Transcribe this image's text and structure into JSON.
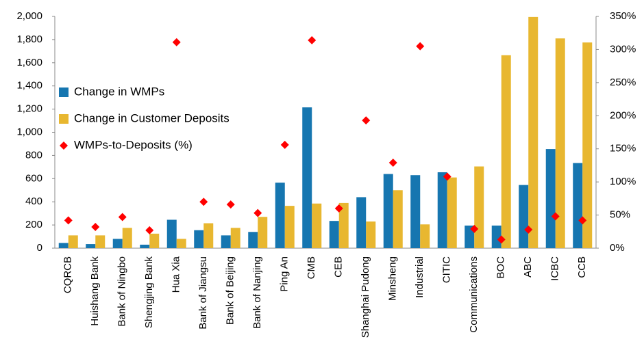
{
  "chart_data": {
    "type": "bar",
    "categories": [
      "CQRCB",
      "Huishang Bank",
      "Bank of Ningbo",
      "Shengjing Bank",
      "Hua Xia",
      "Bank of Jiangsu",
      "Bank of Beijing",
      "Bank of Nanjing",
      "Ping An",
      "CMB",
      "CEB",
      "Shanghai Pudong",
      "Minsheng",
      "Industrial",
      "CITIC",
      "Communications",
      "BOC",
      "ABC",
      "ICBC",
      "CCB"
    ],
    "series": [
      {
        "name": "Change in WMPs",
        "color": "#1676b0",
        "values": [
          45,
          35,
          80,
          30,
          245,
          155,
          110,
          140,
          565,
          1215,
          235,
          440,
          640,
          630,
          655,
          195,
          195,
          545,
          855,
          735
        ]
      },
      {
        "name": "Change in Customer Deposits",
        "color": "#e8b730",
        "values": [
          110,
          110,
          175,
          125,
          80,
          215,
          175,
          270,
          365,
          385,
          390,
          230,
          500,
          205,
          610,
          705,
          1665,
          1995,
          1810,
          1775
        ]
      },
      {
        "name": "WMPs-to-Deposits (%)",
        "color": "#ff0000",
        "axis": "y2",
        "values": [
          42,
          32,
          47,
          27,
          311,
          70,
          66,
          53,
          156,
          314,
          60,
          193,
          129,
          305,
          108,
          29,
          13,
          28,
          48,
          42
        ]
      }
    ],
    "ylim": [
      0,
      2000
    ],
    "yticks": [
      0,
      200,
      400,
      600,
      800,
      {
        "value": 1000,
        "label": "1,000"
      },
      {
        "value": 1200,
        "label": "1,200"
      },
      {
        "value": 1400,
        "label": "1,400"
      },
      {
        "value": 1600,
        "label": "1,600"
      },
      {
        "value": 1800,
        "label": "1,800"
      },
      {
        "value": 2000,
        "label": "2,000"
      }
    ],
    "y2lim": [
      0,
      350
    ],
    "y2ticks": [
      {
        "value": 0,
        "label": "0%"
      },
      {
        "value": 50,
        "label": "50%"
      },
      {
        "value": 100,
        "label": "100%"
      },
      {
        "value": 150,
        "label": "150%"
      },
      {
        "value": 200,
        "label": "200%"
      },
      {
        "value": 250,
        "label": "250%"
      },
      {
        "value": 300,
        "label": "300%"
      },
      {
        "value": 350,
        "label": "350%"
      }
    ],
    "legend": "upper left"
  }
}
